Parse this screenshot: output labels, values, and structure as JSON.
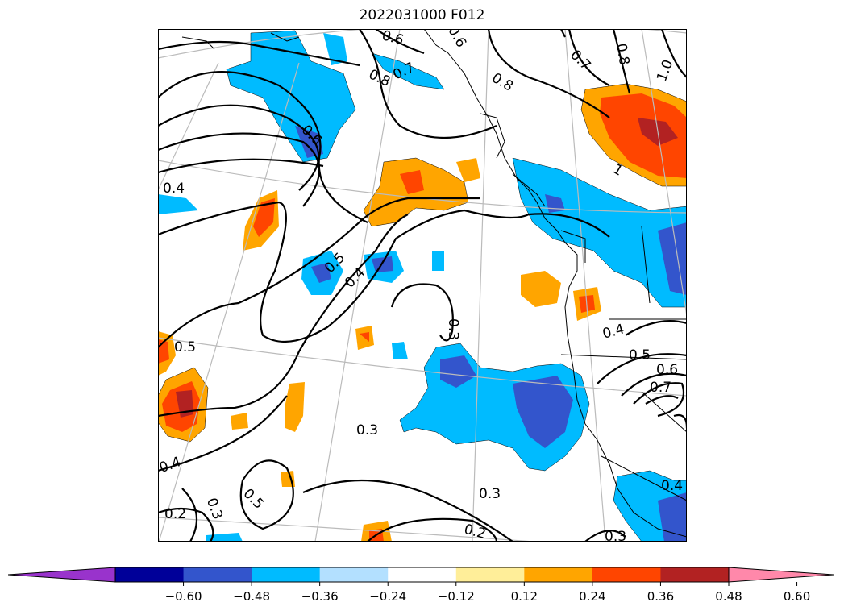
{
  "title": "2022031000 F012",
  "colorbar": {
    "ticks": [
      "−0.60",
      "−0.48",
      "−0.36",
      "−0.24",
      "−0.12",
      "0.12",
      "0.24",
      "0.36",
      "0.48",
      "0.60"
    ],
    "colors": {
      "under": "#9933cc",
      "bins": [
        "#000099",
        "#3355cc",
        "#00bbff",
        "#b3e0ff",
        "#ffffff",
        "#ffee99",
        "#ffa500",
        "#ff4500",
        "#b22222"
      ],
      "over": "#ff88aa"
    }
  },
  "contour_labels": [
    "0.6",
    "0.7",
    "0.8",
    "0.8",
    "0.6",
    "0.7",
    "0.8",
    "1.0",
    "1",
    "0.6",
    "0.4",
    "0.5",
    "0.4",
    "0.3",
    "0.4",
    "0.5",
    "0.6",
    "0.7",
    "0.5",
    "0.3",
    "0.4",
    "0.5",
    "0.3",
    "0.2",
    "0.3",
    "0.2",
    "0.3",
    "0.4"
  ]
}
